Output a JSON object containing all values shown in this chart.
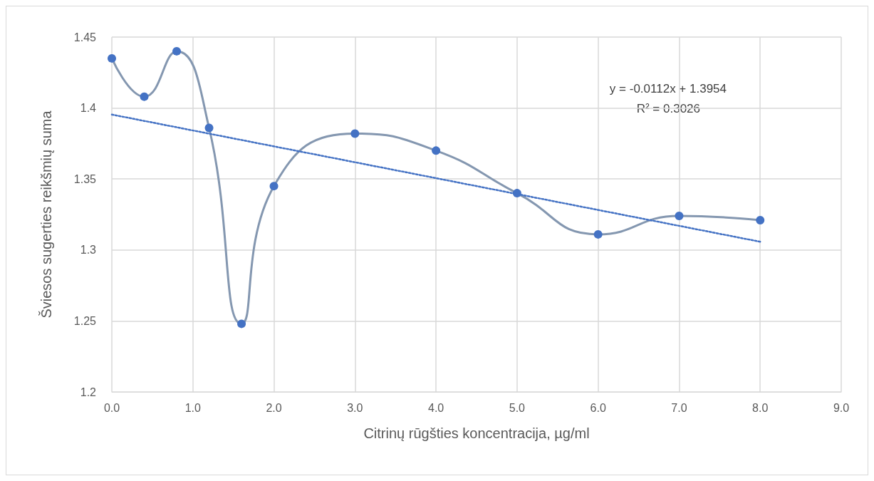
{
  "chart_data": {
    "type": "line",
    "xlabel": "Citrinų rūgšties koncentracija, µg/ml",
    "ylabel": "Šviesos sugerties reikšmių suma",
    "series": [
      {
        "color": "#8497b0",
        "colors": [
          "#4472c4",
          "#4472c4",
          "#4472c4",
          "#4472c4",
          "#4472c4",
          "#4472c4",
          "#4472c4",
          "#4472c4",
          "#4472c4",
          "#4472c4",
          "#4472c4",
          "#4472c4"
        ],
        "marker": "circle",
        "line_style": "solid",
        "x": [
          0,
          0.4,
          0.8,
          1.2,
          1.6,
          2,
          3,
          4,
          5,
          6,
          7,
          8
        ],
        "values": [
          1.435,
          1.408,
          1.44,
          1.386,
          1.248,
          1.345,
          1.382,
          1.37,
          1.34,
          1.311,
          1.324,
          1.321
        ]
      },
      {
        "color": "#4472c4",
        "marker": "none",
        "line_style": "dotted",
        "x": [
          0,
          8
        ],
        "values": [
          1.3954,
          1.3058
        ]
      }
    ],
    "xlim": [
      0,
      9
    ],
    "xticks": [
      {
        "value": 0,
        "label": "0.0"
      },
      {
        "value": 1,
        "label": "1.0"
      },
      {
        "value": 2,
        "label": "2.0"
      },
      {
        "value": 3,
        "label": "3.0"
      },
      {
        "value": 4,
        "label": "4.0"
      },
      {
        "value": 5,
        "label": "5.0"
      },
      {
        "value": 6,
        "label": "6.0"
      },
      {
        "value": 7,
        "label": "7.0"
      },
      {
        "value": 8,
        "label": "8.0"
      },
      {
        "value": 9,
        "label": "9.0"
      }
    ],
    "ylim": [
      1.2,
      1.45
    ],
    "yticks": [
      1.2,
      1.25,
      1.3,
      1.35,
      1.4,
      1.45
    ],
    "grid": true,
    "annotations": [
      "y = -0.0112x + 1.3954",
      "R² = 0.3026"
    ]
  }
}
